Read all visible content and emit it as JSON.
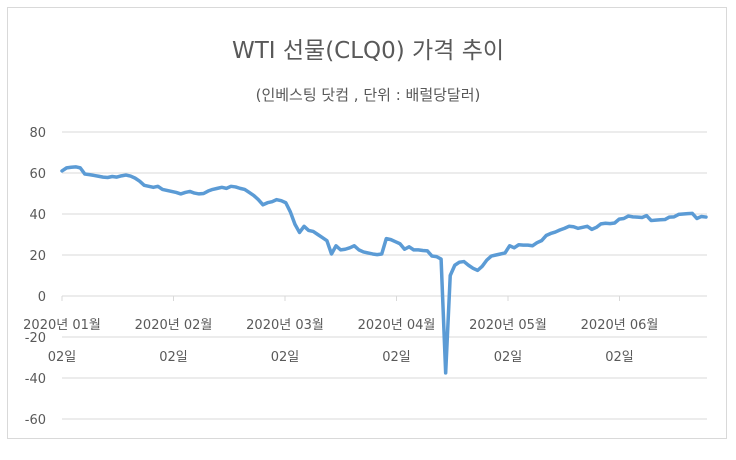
{
  "chart_data": {
    "type": "line",
    "title": "WTI 선물(CLQ0) 가격 추이",
    "subtitle": "(인베스팅 닷컴 , 단위 : 배럴당달러)",
    "y_ticks": [
      "80",
      "60",
      "40",
      "20",
      "0",
      "-20",
      "-40",
      "-60"
    ],
    "ylim": [
      -60,
      80
    ],
    "x_tick_labels": [
      {
        "line1": "2020년 01월",
        "line2": "02일"
      },
      {
        "line1": "2020년 02월",
        "line2": "02일"
      },
      {
        "line1": "2020년 03월",
        "line2": "02일"
      },
      {
        "line1": "2020년 04월",
        "line2": "02일"
      },
      {
        "line1": "2020년 05월",
        "line2": "02일"
      },
      {
        "line1": "2020년 06월",
        "line2": "02일"
      }
    ],
    "grid": true,
    "line_color": "#5b9bd5",
    "series": [
      {
        "values": [
          61,
          62.5,
          62.8,
          63,
          62.5,
          59.5,
          59.2,
          58.8,
          58.4,
          58,
          57.8,
          58.3,
          58,
          58.6,
          59,
          58.5,
          57.5,
          56,
          54,
          53.5,
          53,
          53.5,
          52,
          51.5,
          51,
          50.5,
          49.8,
          50.5,
          51,
          50.2,
          49.8,
          50,
          51.2,
          52,
          52.5,
          53,
          52.5,
          53.5,
          53.2,
          52.5,
          52,
          50.5,
          49,
          47,
          44.5,
          45.5,
          46,
          47,
          46.5,
          45.5,
          41,
          35,
          31,
          34,
          32,
          31.5,
          30,
          28.5,
          27,
          20.5,
          24.5,
          22.5,
          22.8,
          23.5,
          24.5,
          22.5,
          21.5,
          21,
          20.5,
          20.2,
          20.5,
          28,
          27.5,
          26.5,
          25.5,
          22.8,
          24,
          22.5,
          22.5,
          22.2,
          22,
          19.5,
          19.2,
          18,
          -37.5,
          10,
          15,
          16.5,
          16.8,
          15,
          13.5,
          12.5,
          14.5,
          17.5,
          19.5,
          20,
          20.5,
          21,
          24.5,
          23.5,
          25,
          24.8,
          24.8,
          24.5,
          26,
          27,
          29.5,
          30.5,
          31.2,
          32.2,
          33,
          34,
          33.8,
          33,
          33.5,
          34,
          32.5,
          33.5,
          35.2,
          35.5,
          35.3,
          35.6,
          37.5,
          37.8,
          39,
          38.6,
          38.5,
          38.3,
          39.2,
          36.8,
          37,
          37.2,
          37.3,
          38.5,
          38.6,
          39.8,
          40,
          40.2,
          40.3,
          37.8,
          38.8,
          38.5
        ]
      }
    ]
  }
}
